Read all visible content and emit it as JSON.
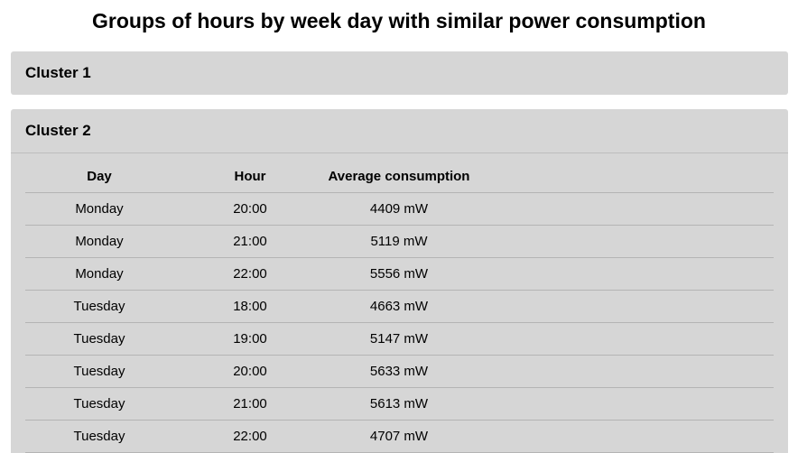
{
  "page": {
    "title": "Groups of hours by week day with similar power consumption"
  },
  "clusters": [
    {
      "label": "Cluster 1",
      "expanded": false
    },
    {
      "label": "Cluster 2",
      "expanded": true,
      "columns": [
        "Day",
        "Hour",
        "Average consumption"
      ],
      "rows": [
        {
          "day": "Monday",
          "hour": "20:00",
          "avg": "4409 mW"
        },
        {
          "day": "Monday",
          "hour": "21:00",
          "avg": "5119 mW"
        },
        {
          "day": "Monday",
          "hour": "22:00",
          "avg": "5556 mW"
        },
        {
          "day": "Tuesday",
          "hour": "18:00",
          "avg": "4663 mW"
        },
        {
          "day": "Tuesday",
          "hour": "19:00",
          "avg": "5147 mW"
        },
        {
          "day": "Tuesday",
          "hour": "20:00",
          "avg": "5633 mW"
        },
        {
          "day": "Tuesday",
          "hour": "21:00",
          "avg": "5613 mW"
        },
        {
          "day": "Tuesday",
          "hour": "22:00",
          "avg": "4707 mW"
        }
      ]
    }
  ]
}
